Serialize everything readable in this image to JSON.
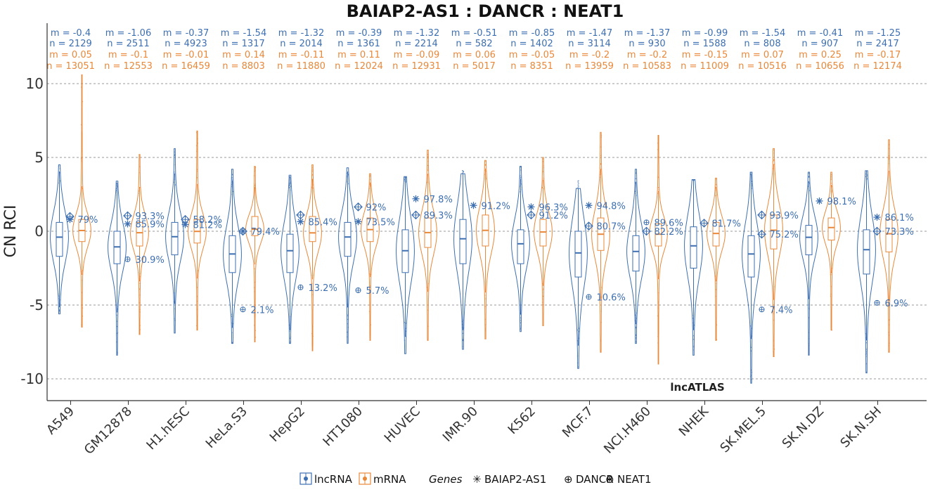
{
  "chart_data": {
    "type": "violin",
    "title": "BAIAP2-AS1 : DANCR : NEAT1",
    "ylabel": "CN RCI",
    "xlabel": "",
    "ylim": [
      -11.5,
      14.2
    ],
    "yticks": [
      10,
      5,
      0,
      -5,
      -10
    ],
    "ytick_labels": [
      "10",
      "5",
      "0",
      "-5",
      "-10"
    ],
    "grid": "horizontal dashed",
    "watermark": "lncATLAS",
    "colors": {
      "lncRNA": "#3d6fb0",
      "mRNA": "#e8883a"
    },
    "categories": [
      "A549",
      "GM12878",
      "H1.hESC",
      "HeLa.S3",
      "HepG2",
      "HT1080",
      "HUVEC",
      "IMR.90",
      "K562",
      "MCF.7",
      "NCI.H460",
      "NHEK",
      "SK.MEL.5",
      "SK.N.DZ",
      "SK.N.SH"
    ],
    "series": [
      {
        "name": "lncRNA",
        "median": [
          -0.4,
          -1.06,
          -0.37,
          -1.54,
          -1.32,
          -0.39,
          -1.32,
          -0.51,
          -0.85,
          -1.47,
          -1.37,
          -0.99,
          -1.54,
          -0.41,
          -1.25
        ],
        "n": [
          2129,
          2511,
          4923,
          1317,
          2014,
          1361,
          2214,
          582,
          1402,
          3114,
          930,
          1588,
          808,
          907,
          2417
        ],
        "m_labels": [
          "m = -0.4",
          "m = -1.06",
          "m = -0.37",
          "m = -1.54",
          "m = -1.32",
          "m = -0.39",
          "m = -1.32",
          "m = -0.51",
          "m = -0.85",
          "m = -1.47",
          "m = -1.37",
          "m = -0.99",
          "m = -1.54",
          "m = -0.41",
          "m = -1.25"
        ],
        "n_labels": [
          "n = 2129",
          "n = 2511",
          "n = 4923",
          "n = 1317",
          "n = 2014",
          "n = 1361",
          "n = 2214",
          "n = 582",
          "n = 1402",
          "n = 3114",
          "n = 930",
          "n = 1588",
          "n = 808",
          "n = 907",
          "n = 2417"
        ],
        "q1": [
          -1.7,
          -2.2,
          -1.6,
          -2.8,
          -2.8,
          -1.7,
          -2.8,
          -2.2,
          -2.2,
          -3.1,
          -2.7,
          -2.5,
          -3.1,
          -1.6,
          -2.9
        ],
        "q3": [
          0.6,
          0.0,
          0.6,
          -0.3,
          -0.2,
          0.6,
          0.1,
          0.8,
          0.1,
          0.0,
          -0.3,
          0.3,
          -0.3,
          0.4,
          0.1
        ],
        "min": [
          -5.6,
          -8.4,
          -6.9,
          -7.6,
          -7.6,
          -7.6,
          -8.3,
          -8.0,
          -6.8,
          -9.3,
          -7.6,
          -8.4,
          -10.3,
          -8.4,
          -9.6
        ],
        "max": [
          4.5,
          3.4,
          5.6,
          4.2,
          3.8,
          4.3,
          3.7,
          3.9,
          4.4,
          2.9,
          4.2,
          3.5,
          4.0,
          4.0,
          4.1
        ]
      },
      {
        "name": "mRNA",
        "median": [
          0.05,
          -0.1,
          -0.01,
          0.14,
          -0.11,
          0.11,
          -0.09,
          0.06,
          -0.05,
          -0.2,
          -0.2,
          -0.15,
          0.07,
          0.25,
          -0.17
        ],
        "n": [
          13051,
          12553,
          16459,
          8803,
          11880,
          12024,
          12931,
          5017,
          8351,
          13959,
          10583,
          11009,
          10516,
          10656,
          12174
        ],
        "m_labels": [
          "m = 0.05",
          "m = -0.1",
          "m = -0.01",
          "m = 0.14",
          "m = -0.11",
          "m = 0.11",
          "m = -0.09",
          "m = 0.06",
          "m = -0.05",
          "m = -0.2",
          "m = -0.2",
          "m = -0.15",
          "m = 0.07",
          "m = 0.25",
          "m = -0.17"
        ],
        "n_labels": [
          "n = 13051",
          "n = 12553",
          "n = 16459",
          "n = 8803",
          "n = 11880",
          "n = 12024",
          "n = 12931",
          "n = 5017",
          "n = 8351",
          "n = 13959",
          "n = 10583",
          "n = 11009",
          "n = 10516",
          "n = 10656",
          "n = 12174"
        ],
        "q1": [
          -0.7,
          -1.0,
          -0.8,
          -0.3,
          -0.7,
          -0.7,
          -1.1,
          -1.0,
          -1.0,
          -1.3,
          -1.0,
          -1.0,
          -1.2,
          -0.6,
          -1.4
        ],
        "q3": [
          0.8,
          0.6,
          0.8,
          1.0,
          1.0,
          0.9,
          0.9,
          1.1,
          0.8,
          0.9,
          0.5,
          0.6,
          1.1,
          0.9,
          0.8
        ],
        "min": [
          -6.5,
          -7.0,
          -6.7,
          -7.5,
          -8.1,
          -7.4,
          -7.4,
          -7.3,
          -6.4,
          -8.2,
          -9.0,
          -7.4,
          -8.5,
          -6.7,
          -8.2
        ],
        "max": [
          10.6,
          5.2,
          6.8,
          4.4,
          4.5,
          3.9,
          5.5,
          4.8,
          5.0,
          6.7,
          6.5,
          3.6,
          5.6,
          4.0,
          6.2
        ]
      }
    ],
    "legend": {
      "items": [
        "lncRNA",
        "mRNA"
      ],
      "genes_label": "Genes",
      "gene_items": [
        {
          "name": "BAIAP2-AS1",
          "symbol": "✳"
        },
        {
          "name": "DANCR",
          "symbol": "⊕"
        },
        {
          "name": "NEAT1",
          "symbol": "⊕"
        }
      ]
    },
    "genes": {
      "BAIAP2-AS1": {
        "values": [
          0.8,
          0.5,
          0.45,
          0.0,
          0.65,
          0.65,
          2.2,
          1.75,
          1.65,
          1.75,
          null,
          null,
          null,
          2.05,
          0.95
        ],
        "labels": [
          "79%",
          "85.9%",
          "81.2%",
          "79.4%",
          "85.4%",
          "73.5%",
          "97.8%",
          "91.2%",
          "96.3%",
          "94.8%",
          null,
          null,
          null,
          "98.1%",
          "86.1%"
        ]
      },
      "DANCR": {
        "values": [
          1.0,
          1.05,
          0.8,
          0.0,
          1.1,
          1.65,
          1.1,
          null,
          1.1,
          0.35,
          0.0,
          0.55,
          1.1,
          null,
          0.0
        ],
        "labels": [
          null,
          "93.3%",
          "58.2%",
          null,
          null,
          "92%",
          "89.3%",
          null,
          "91.2%",
          "80.7%",
          "82.2%",
          "81.7%",
          "93.9%",
          null,
          "73.3%"
        ]
      },
      "NEAT1": {
        "values": [
          null,
          -1.9,
          null,
          -5.3,
          -3.8,
          -4.0,
          null,
          null,
          null,
          -4.45,
          0.6,
          null,
          -5.3,
          null,
          -4.85
        ],
        "labels": [
          null,
          "30.9%",
          null,
          "2.1%",
          "13.2%",
          "5.7%",
          null,
          null,
          null,
          "10.6%",
          "89.6%",
          null,
          "7.4%",
          null,
          "6.9%"
        ]
      },
      "DANCR_second": {
        "values": [
          null,
          null,
          null,
          null,
          null,
          null,
          null,
          null,
          null,
          null,
          null,
          null,
          -0.2,
          null,
          null
        ],
        "labels": [
          null,
          null,
          null,
          null,
          null,
          null,
          null,
          null,
          null,
          null,
          null,
          null,
          "75.2%",
          null,
          null
        ]
      }
    }
  }
}
